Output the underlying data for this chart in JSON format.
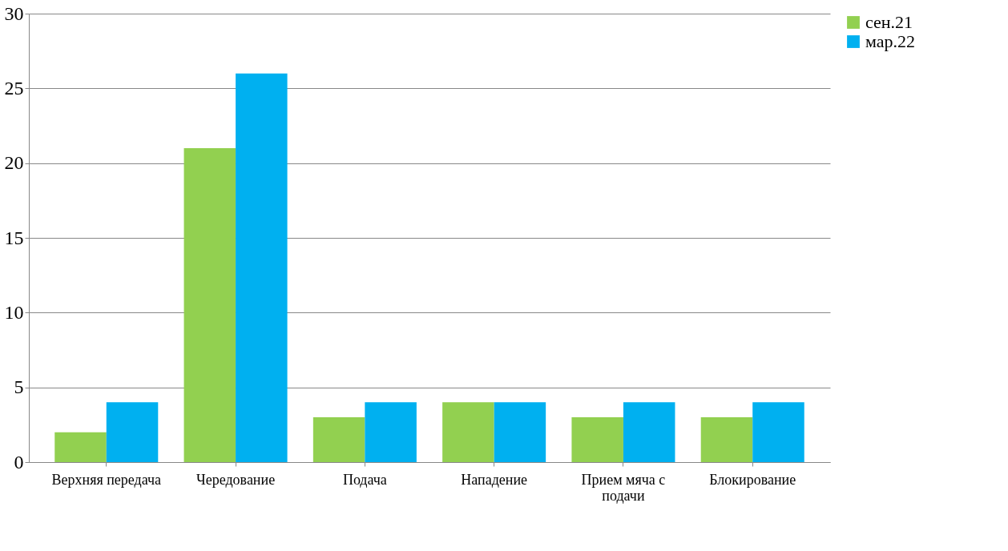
{
  "chart_data": {
    "type": "bar",
    "categories": [
      "Верхняя передача",
      "Чередование",
      "Подача",
      "Нападение",
      "Прием мяча с подачи",
      "Блокирование"
    ],
    "series": [
      {
        "name": "сен.21",
        "color": "#92d050",
        "values": [
          2,
          21,
          3,
          4,
          3,
          3
        ]
      },
      {
        "name": "мар.22",
        "color": "#00b0f0",
        "values": [
          4,
          26,
          4,
          4,
          4,
          4
        ]
      }
    ],
    "ylim": [
      0,
      30
    ],
    "yticks": [
      0,
      5,
      10,
      15,
      20,
      25,
      30
    ],
    "grid": "y",
    "legend": "right"
  }
}
